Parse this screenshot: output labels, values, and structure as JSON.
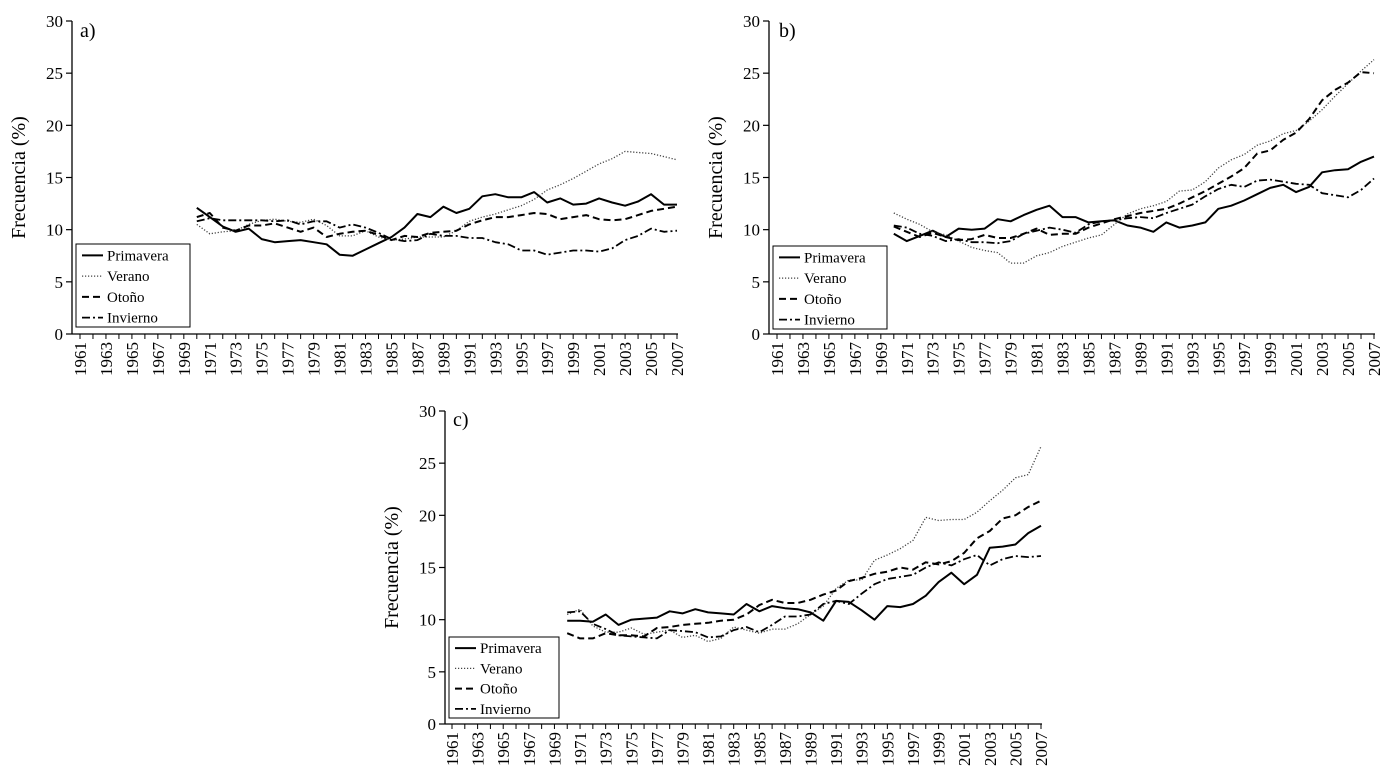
{
  "chart_data": [
    {
      "type": "line",
      "panel_label": "a)",
      "ylabel": "Frecuencia (%)",
      "ylim": [
        0,
        30
      ],
      "yticks": [
        "0",
        "5",
        "10",
        "15",
        "20",
        "25",
        "30"
      ],
      "xlim": [
        1961,
        2007
      ],
      "xticks": [
        "1961",
        "1963",
        "1965",
        "1967",
        "1969",
        "1971",
        "1973",
        "1975",
        "1977",
        "1979",
        "1981",
        "1983",
        "1985",
        "1987",
        "1989",
        "1991",
        "1993",
        "1995",
        "1997",
        "1999",
        "2001",
        "2003",
        "2005",
        "2007"
      ],
      "legend_position": "bottom-left",
      "x": [
        1970,
        1971,
        1972,
        1973,
        1974,
        1975,
        1976,
        1977,
        1978,
        1979,
        1980,
        1981,
        1982,
        1983,
        1984,
        1985,
        1986,
        1987,
        1988,
        1989,
        1990,
        1991,
        1992,
        1993,
        1994,
        1995,
        1996,
        1997,
        1998,
        1999,
        2000,
        2001,
        2002,
        2003,
        2004,
        2005,
        2006,
        2007
      ],
      "series": [
        {
          "name": "Primavera",
          "style": "solid",
          "values": [
            12.1,
            11.2,
            10.3,
            9.8,
            10.1,
            9.1,
            8.8,
            8.9,
            9.0,
            8.8,
            8.6,
            7.6,
            7.5,
            8.1,
            8.7,
            9.3,
            10.2,
            11.5,
            11.2,
            12.2,
            11.6,
            12.0,
            13.2,
            13.4,
            13.1,
            13.1,
            13.6,
            12.6,
            13.0,
            12.4,
            12.5,
            13.0,
            12.6,
            12.3,
            12.7,
            13.4,
            12.4,
            12.4
          ]
        },
        {
          "name": "Verano",
          "style": "dotted",
          "values": [
            10.5,
            9.6,
            9.8,
            9.9,
            10.5,
            10.9,
            11.0,
            10.8,
            10.7,
            11.0,
            10.4,
            9.4,
            9.4,
            9.9,
            9.3,
            9.0,
            9.1,
            9.3,
            9.3,
            9.3,
            9.9,
            10.8,
            11.2,
            11.5,
            11.9,
            12.3,
            12.9,
            13.8,
            14.3,
            14.9,
            15.6,
            16.3,
            16.8,
            17.5,
            17.4,
            17.3,
            17.0,
            16.7
          ]
        },
        {
          "name": "Otoño",
          "style": "dashed",
          "values": [
            11.2,
            11.6,
            10.2,
            9.9,
            10.4,
            10.4,
            10.6,
            10.2,
            9.8,
            10.2,
            9.3,
            9.6,
            9.8,
            9.9,
            9.5,
            9.0,
            9.4,
            9.3,
            9.7,
            9.8,
            9.9,
            10.5,
            10.9,
            11.2,
            11.2,
            11.4,
            11.6,
            11.5,
            11.0,
            11.2,
            11.4,
            11.0,
            10.9,
            11.0,
            11.4,
            11.8,
            12.0,
            12.2
          ]
        },
        {
          "name": "Invierno",
          "style": "dashdot",
          "values": [
            10.8,
            11.1,
            10.9,
            10.9,
            10.9,
            10.9,
            10.8,
            10.9,
            10.5,
            10.8,
            10.8,
            10.2,
            10.5,
            10.2,
            9.7,
            9.1,
            8.9,
            9.0,
            9.6,
            9.4,
            9.4,
            9.2,
            9.2,
            8.8,
            8.6,
            8.0,
            8.0,
            7.6,
            7.8,
            8.0,
            8.0,
            7.9,
            8.2,
            9.0,
            9.4,
            10.1,
            9.8,
            9.9
          ]
        }
      ]
    },
    {
      "type": "line",
      "panel_label": "b)",
      "ylabel": "Frecuencia (%)",
      "ylim": [
        0,
        30
      ],
      "yticks": [
        "0",
        "5",
        "10",
        "15",
        "20",
        "25",
        "30"
      ],
      "xlim": [
        1961,
        2007
      ],
      "xticks": [
        "1961",
        "1963",
        "1965",
        "1967",
        "1969",
        "1971",
        "1973",
        "1975",
        "1977",
        "1979",
        "1981",
        "1983",
        "1985",
        "1987",
        "1989",
        "1991",
        "1993",
        "1995",
        "1997",
        "1999",
        "2001",
        "2003",
        "2005",
        "2007"
      ],
      "legend_position": "bottom-left",
      "x": [
        1970,
        1971,
        1972,
        1973,
        1974,
        1975,
        1976,
        1977,
        1978,
        1979,
        1980,
        1981,
        1982,
        1983,
        1984,
        1985,
        1986,
        1987,
        1988,
        1989,
        1990,
        1991,
        1992,
        1993,
        1994,
        1995,
        1996,
        1997,
        1998,
        1999,
        2000,
        2001,
        2002,
        2003,
        2004,
        2005,
        2006,
        2007
      ],
      "series": [
        {
          "name": "Primavera",
          "style": "solid",
          "values": [
            9.6,
            8.9,
            9.4,
            9.9,
            9.3,
            10.1,
            10.0,
            10.1,
            11.0,
            10.8,
            11.4,
            11.9,
            12.3,
            11.2,
            11.2,
            10.7,
            10.8,
            10.9,
            10.4,
            10.2,
            9.8,
            10.7,
            10.2,
            10.4,
            10.7,
            12.0,
            12.3,
            12.8,
            13.4,
            14.0,
            14.3,
            13.6,
            14.1,
            15.5,
            15.7,
            15.8,
            16.5,
            17.0
          ]
        },
        {
          "name": "Verano",
          "style": "dotted",
          "values": [
            11.6,
            11.0,
            10.5,
            9.8,
            9.5,
            8.9,
            8.3,
            8.0,
            7.8,
            6.8,
            6.8,
            7.5,
            7.8,
            8.4,
            8.8,
            9.2,
            9.5,
            10.5,
            11.5,
            12.0,
            12.3,
            12.7,
            13.7,
            13.8,
            14.6,
            15.9,
            16.7,
            17.2,
            18.1,
            18.5,
            19.2,
            19.5,
            20.4,
            21.5,
            22.8,
            24.0,
            25.2,
            26.3
          ]
        },
        {
          "name": "Otoño",
          "style": "dashed",
          "values": [
            10.3,
            9.8,
            9.3,
            9.7,
            9.3,
            9.0,
            9.1,
            9.5,
            9.2,
            9.2,
            9.6,
            10.1,
            9.5,
            9.6,
            9.6,
            10.2,
            10.6,
            11.0,
            11.3,
            11.6,
            11.8,
            12.0,
            12.5,
            13.1,
            13.7,
            14.4,
            15.1,
            15.9,
            17.3,
            17.6,
            18.6,
            19.3,
            20.6,
            22.4,
            23.4,
            24.1,
            25.1,
            25.0
          ]
        },
        {
          "name": "Invierno",
          "style": "dashdot",
          "values": [
            10.4,
            10.2,
            9.6,
            9.4,
            8.9,
            9.1,
            8.8,
            8.8,
            8.7,
            8.9,
            9.6,
            9.9,
            10.2,
            10.0,
            9.7,
            10.5,
            10.8,
            10.9,
            11.1,
            11.2,
            11.1,
            11.6,
            12.0,
            12.4,
            13.2,
            13.9,
            14.3,
            14.1,
            14.7,
            14.8,
            14.6,
            14.4,
            14.3,
            13.5,
            13.3,
            13.1,
            13.8,
            14.9
          ]
        }
      ]
    },
    {
      "type": "line",
      "panel_label": "c)",
      "ylabel": "Frecuencia (%)",
      "ylim": [
        0,
        30
      ],
      "yticks": [
        "0",
        "5",
        "10",
        "15",
        "20",
        "25",
        "30"
      ],
      "xlim": [
        1961,
        2007
      ],
      "xticks": [
        "1961",
        "1963",
        "1965",
        "1967",
        "1969",
        "1971",
        "1973",
        "1975",
        "1977",
        "1979",
        "1981",
        "1983",
        "1985",
        "1987",
        "1989",
        "1991",
        "1993",
        "1995",
        "1997",
        "1999",
        "2001",
        "2003",
        "2005",
        "2007"
      ],
      "legend_position": "bottom-left",
      "x": [
        1970,
        1971,
        1972,
        1973,
        1974,
        1975,
        1976,
        1977,
        1978,
        1979,
        1980,
        1981,
        1982,
        1983,
        1984,
        1985,
        1986,
        1987,
        1988,
        1989,
        1990,
        1991,
        1992,
        1993,
        1994,
        1995,
        1996,
        1997,
        1998,
        1999,
        2000,
        2001,
        2002,
        2003,
        2004,
        2005,
        2006,
        2007
      ],
      "series": [
        {
          "name": "Primavera",
          "style": "solid",
          "values": [
            9.9,
            9.9,
            9.8,
            10.5,
            9.5,
            10.0,
            10.1,
            10.2,
            10.8,
            10.6,
            11.0,
            10.7,
            10.6,
            10.5,
            11.5,
            10.8,
            11.3,
            11.1,
            11.0,
            10.7,
            9.9,
            11.8,
            11.7,
            10.9,
            10.0,
            11.3,
            11.2,
            11.5,
            12.3,
            13.6,
            14.5,
            13.4,
            14.3,
            16.9,
            17.0,
            17.2,
            18.3,
            19.0
          ]
        },
        {
          "name": "Verano",
          "style": "dotted",
          "values": [
            10.5,
            11.0,
            9.4,
            8.8,
            8.8,
            9.2,
            8.6,
            8.8,
            9.0,
            8.3,
            8.5,
            7.9,
            8.2,
            9.3,
            9.0,
            8.7,
            9.1,
            9.1,
            9.6,
            10.5,
            11.3,
            13.0,
            13.8,
            13.8,
            15.7,
            16.2,
            16.8,
            17.6,
            19.8,
            19.5,
            19.6,
            19.6,
            20.3,
            21.4,
            22.4,
            23.6,
            23.9,
            26.6
          ]
        },
        {
          "name": "Otoño",
          "style": "dashed",
          "values": [
            8.7,
            8.2,
            8.2,
            8.7,
            8.5,
            8.5,
            8.4,
            9.2,
            9.3,
            9.5,
            9.6,
            9.7,
            9.9,
            10.0,
            10.5,
            11.4,
            11.9,
            11.6,
            11.6,
            11.9,
            12.4,
            12.8,
            13.7,
            14.0,
            14.4,
            14.6,
            15.0,
            14.8,
            15.5,
            15.3,
            15.6,
            16.4,
            17.8,
            18.5,
            19.7,
            20.0,
            20.8,
            21.4
          ]
        },
        {
          "name": "Invierno",
          "style": "dashdot",
          "values": [
            10.7,
            10.8,
            9.6,
            9.1,
            8.5,
            8.4,
            8.3,
            8.2,
            9.0,
            8.9,
            8.8,
            8.3,
            8.4,
            9.0,
            9.3,
            8.8,
            9.5,
            10.3,
            10.3,
            10.5,
            11.5,
            11.8,
            11.5,
            12.5,
            13.4,
            13.9,
            14.1,
            14.3,
            15.0,
            15.5,
            15.2,
            15.8,
            16.2,
            15.2,
            15.8,
            16.1,
            16.0,
            16.1
          ]
        }
      ]
    }
  ]
}
